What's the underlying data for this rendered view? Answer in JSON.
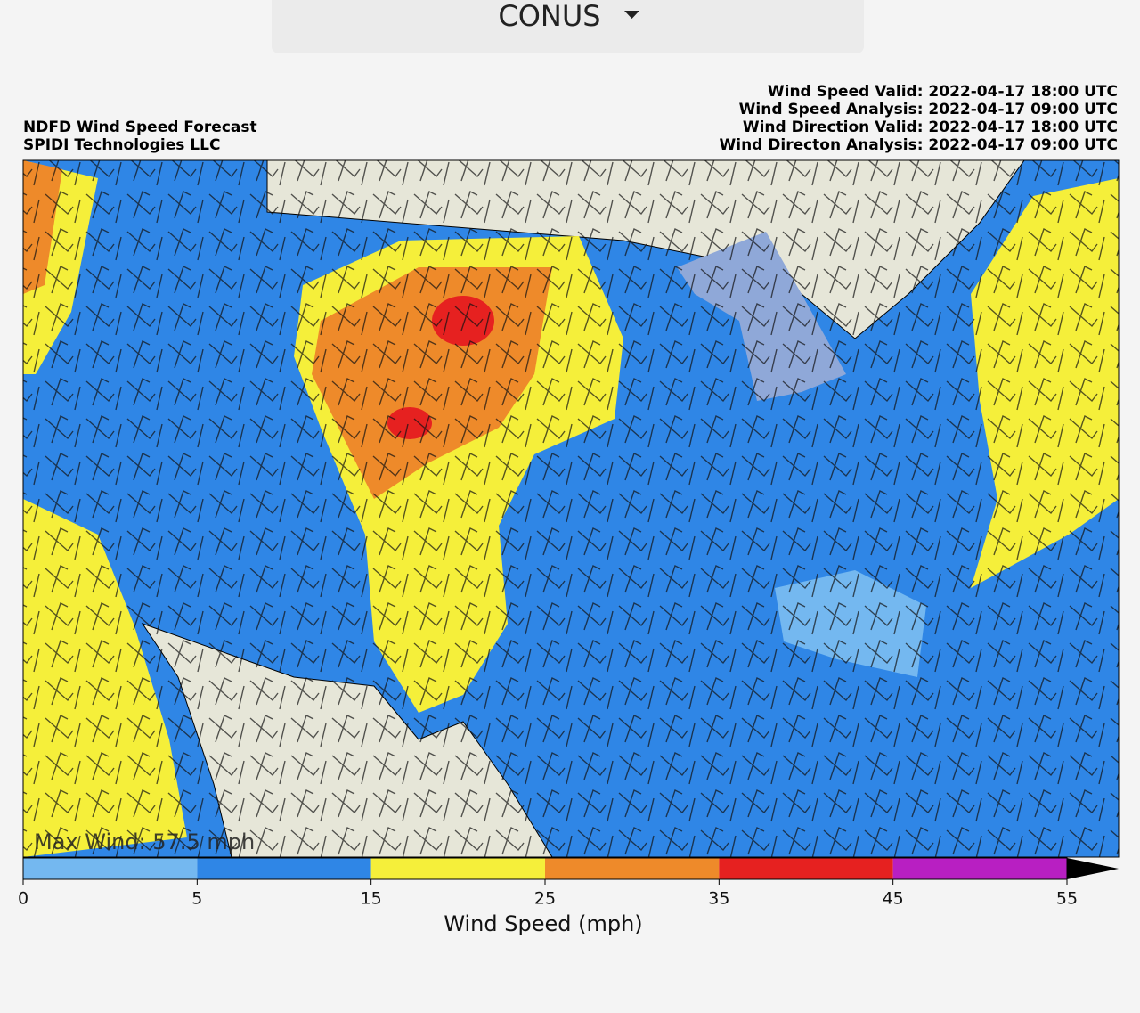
{
  "dropdown": {
    "label": "CONUS"
  },
  "header": {
    "title_lines": [
      "NDFD Wind Speed Forecast",
      "SPIDI Technologies LLC"
    ],
    "time_lines": [
      "Wind Speed Valid: 2022-04-17 18:00 UTC",
      "Wind Speed Analysis: 2022-04-17 09:00 UTC",
      "Wind Direction Valid: 2022-04-17 18:00 UTC",
      "Wind Directon Analysis: 2022-04-17 09:00 UTC"
    ]
  },
  "map": {
    "annotation": "Max Wind: 57.5 mph"
  },
  "colorbar": {
    "label": "Wind Speed (mph)",
    "ticks": [
      0,
      5,
      15,
      25,
      35,
      45,
      55
    ],
    "colors": [
      "#74b8f0",
      "#2f86e6",
      "#f5ef3a",
      "#ee8a2a",
      "#e62120",
      "#b81fc2"
    ],
    "extend_color": "#000000"
  }
}
